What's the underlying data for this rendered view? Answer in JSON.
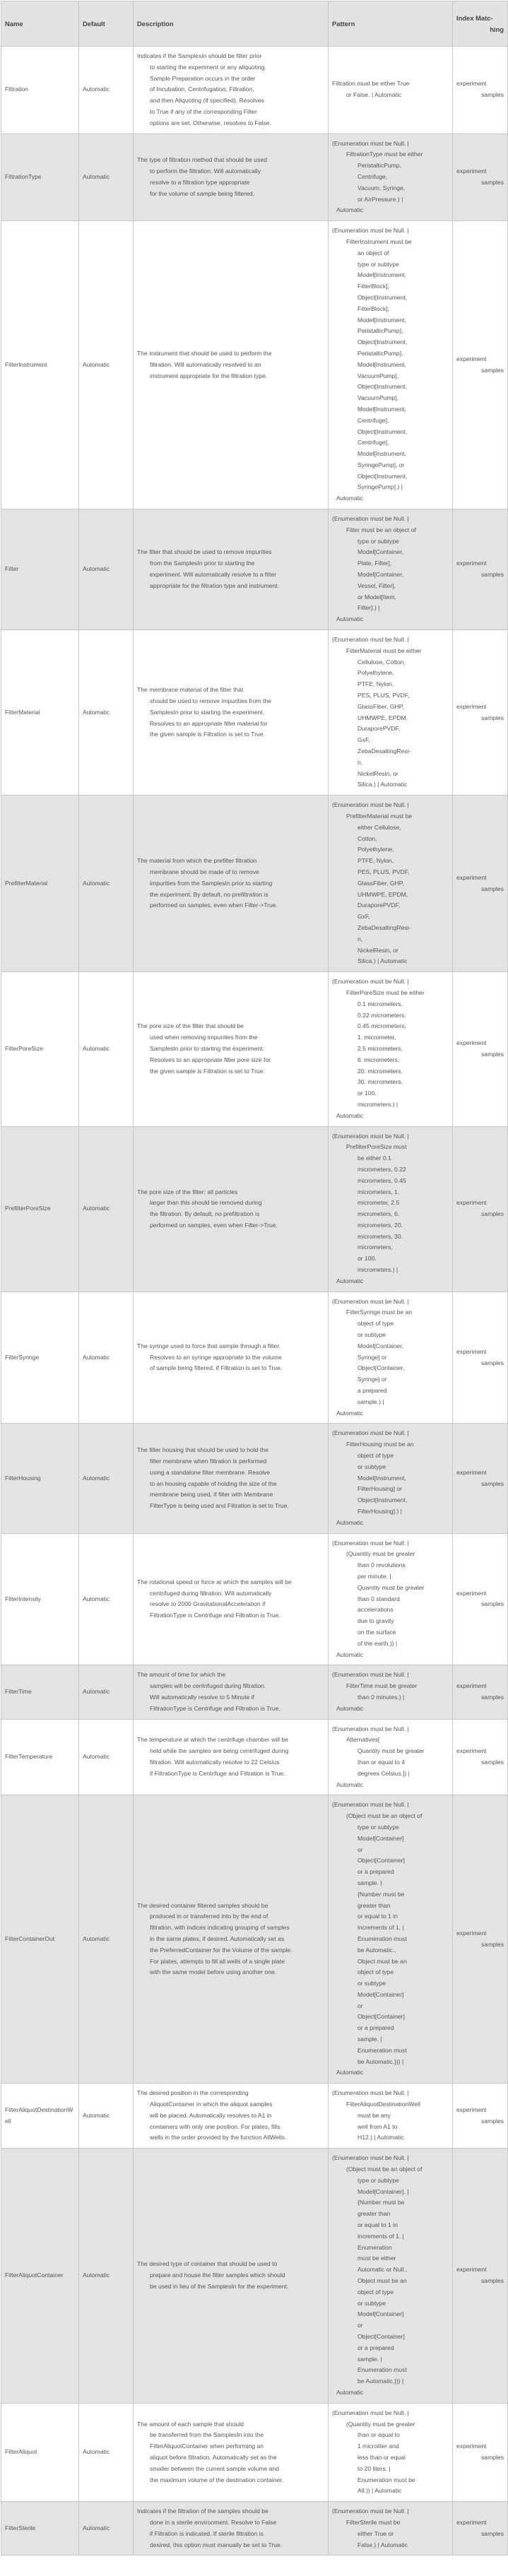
{
  "headers": {
    "name": "Name",
    "default": "Default",
    "description": "Description",
    "pattern": "Pattern",
    "index": "Index Matc- hing"
  },
  "rows": [
    {
      "name": "Filtration",
      "default": "Automatic",
      "description": [
        "Indicates if the SamplesIn should be filter prior",
        "to starting the experiment or any aliquoting.",
        "Sample Preparation occurs in the order",
        "of Incubation, Centrifugation, Filtration,",
        "and then Aliquoting (if specified).  Resolves",
        "to True if any of the corresponding Filter",
        "options are set. Otherwise, resolves to False."
      ],
      "pattern": [
        "Filtration must be either True",
        "or False. | Automatic"
      ],
      "index": "experiment samples"
    },
    {
      "name": "FiltrationType",
      "default": "Automatic",
      "description": [
        "The type of filtration method that should be used",
        "to perform the filtration.  Will automatically",
        "resolve to a filtration type appropriate",
        "for the volume of sample being filtered."
      ],
      "pattern": [
        "(Enumeration must be Null. |",
        "FiltrationType must be either",
        "PeristalticPump,",
        "Centrifuge,",
        "Vacuum, Syringe,",
        "or AirPressure.) |",
        "Automatic"
      ],
      "index": "experiment samples"
    },
    {
      "name": "FilterInstrument",
      "default": "Automatic",
      "description": [
        "The instrument that should be used to perform the",
        "filtration.  Will automatically resolved to an",
        "instrument appropriate for the filtration type."
      ],
      "pattern": [
        "(Enumeration must be Null. |",
        "FilterInstrument must be",
        "an object of",
        "type or subtype",
        "Model[Instrument,",
        "FilterBlock],",
        "Object[Instrument,",
        "FilterBlock],",
        "Model[Instrument,",
        "PeristalticPump],",
        "Object[Instrument,",
        "PeristalticPump],",
        "Model[Instrument,",
        "VacuumPump],",
        "Object[Instrument,",
        "VacuumPump],",
        "Model[Instrument,",
        "Centrifuge],",
        "Object[Instrument,",
        "Centrifuge],",
        "Model[Instrument,",
        "SyringePump], or",
        "Object[Instrument,",
        "SyringePump].) |",
        "Automatic"
      ],
      "index": "experiment samples"
    },
    {
      "name": "Filter",
      "default": "Automatic",
      "description": [
        "The filter that should be used to remove impurities",
        "from the SamplesIn prior to starting the",
        "experiment.  Will automatically resolve to a filter",
        "appropriate for the filtration type and instrument."
      ],
      "pattern": [
        "(Enumeration must be Null. |",
        "Filter must be an object of",
        "type or subtype",
        "Model[Container,",
        "Plate, Filter],",
        "Model[Container,",
        "Vessel, Filter],",
        "or Model[Item,",
        "Filter].) |",
        "Automatic"
      ],
      "index": "experiment samples"
    },
    {
      "name": "FilterMaterial",
      "default": "Automatic",
      "description": [
        "The membrane material of the filter that",
        "should be used to remove impurities from the",
        "SamplesIn prior to starting the experiment.",
        "Resolves to an appropriate filter material for",
        "the given sample is Filtration is set to True."
      ],
      "pattern": [
        "(Enumeration must be Null. |",
        "FilterMaterial must be either",
        "Cellulose, Cotton,",
        "Polyethylene,",
        "PTFE, Nylon,",
        "PES, PLUS, PVDF,",
        "GlassFiber, GHP,",
        "UHMWPE, EPDM,",
        "DuraporePVDF,",
        "GxF,",
        "ZebaDesaltingResi-",
        "n,",
        "NickelResin, or",
        "Silica.) | Automatic"
      ],
      "index": "experiment samples"
    },
    {
      "name": "PrefilterMaterial",
      "default": "Automatic",
      "description": [
        "The material from which the prefilter filtration",
        "membrane should be made of to remove",
        "impurities from the SamplesIn prior to starting",
        "the experiment.  By default, no prefiltration is",
        "performed on samples, even when Filter->True."
      ],
      "pattern": [
        "(Enumeration must be Null. |",
        "PrefilterMaterial must be",
        "either Cellulose,",
        "Cotton,",
        "Polyethylene,",
        "PTFE, Nylon,",
        "PES, PLUS, PVDF,",
        "GlassFiber, GHP,",
        "UHMWPE, EPDM,",
        "DuraporePVDF,",
        "GxF,",
        "ZebaDesaltingResi-",
        "n,",
        "NickelResin, or",
        "Silica.) | Automatic"
      ],
      "index": "experiment samples"
    },
    {
      "name": "FilterPoreSize",
      "default": "Automatic",
      "description": [
        "The pore size of the filter that should be",
        "used when removing impurities from the",
        "SamplesIn prior to starting the experiment.",
        "Resolves to an appropriate filter pore size for",
        "the given sample is Filtration is set to True."
      ],
      "pattern": [
        "(Enumeration must be Null. |",
        "FilterPoreSize must be either",
        "0.1 micrometers,",
        "0.22 micrometers,",
        "0.45 micrometers,",
        "1. micrometer,",
        "2.5 micrometers,",
        "6. micrometers,",
        "20. micrometers,",
        "30. micrometers,",
        "or 100.",
        "micrometers.) |",
        "Automatic"
      ],
      "index": "experiment samples"
    },
    {
      "name": "PrefilterPoreSize",
      "default": "Automatic",
      "description": [
        "The pore size of the filter; all particles",
        "larger than this should be removed during",
        "the filtration.  By default, no prefiltration is",
        "performed on samples, even when Filter->True."
      ],
      "pattern": [
        "(Enumeration must be Null. |",
        "PrefilterPoreSize must",
        "be either 0.1",
        "micrometers, 0.22",
        "micrometers, 0.45",
        "micrometers, 1.",
        "micrometer, 2.5",
        "micrometers, 6.",
        "micrometers, 20.",
        "micrometers, 30.",
        "micrometers,",
        "or 100.",
        "micrometers.) |",
        "Automatic"
      ],
      "index": "experiment samples"
    },
    {
      "name": "FilterSyringe",
      "default": "Automatic",
      "description": [
        "The syringe used to force that sample through a filter.",
        "Resolves to an syringe appropriate to the volume",
        "of sample being filtered, if Filtration is set to True."
      ],
      "pattern": [
        "(Enumeration must be Null. |",
        "FilterSyringe must be an",
        "object of type",
        "or subtype",
        "Model[Container,",
        "Syringe] or",
        "Object[Container,",
        "Syringe] or",
        "a prepared",
        "sample.) |",
        "Automatic"
      ],
      "index": "experiment samples"
    },
    {
      "name": "FilterHousing",
      "default": "Automatic",
      "description": [
        "The filter housing that should be used to hold the",
        "filter membrane when filtration is performed",
        "using a standalone filter membrane.  Resolve",
        "to an housing capable of holding the size of the",
        "membrane being used, if filter with Membrane",
        "FilterType is being used and Filtration is set to True."
      ],
      "pattern": [
        "(Enumeration must be Null. |",
        "FilterHousing must be an",
        "object of type",
        "or subtype",
        "Model[Instrument,",
        "FilterHousing] or",
        "Object[Instrument,",
        "FilterHousing].) |",
        "Automatic"
      ],
      "index": "experiment samples"
    },
    {
      "name": "FilterIntensity",
      "default": "Automatic",
      "description": [
        "The rotational speed or force at which the samples will be",
        "centrifuged during filtration.  Will automatically",
        "resolve to 2000 GravitationalAcceleration if",
        "FiltrationType is Centrifuge and Filtration is True."
      ],
      "pattern": [
        "(Enumeration must be Null. |",
        "(Quantity must be greater",
        "than 0 revolutions",
        "per minute. |",
        "Quantity must be greater",
        "than 0 standard",
        "accelerations",
        "due to gravity",
        "on the surface",
        "of the earth.)) |",
        "Automatic"
      ],
      "index": "experiment samples"
    },
    {
      "name": "FilterTime",
      "default": "Automatic",
      "description": [
        "The amount of time for which the",
        "samples will be centrifuged during filtration.",
        "Will automatically resolve to 5 Minute if",
        "FiltrationType is Centrifuge and Filtration is True."
      ],
      "pattern": [
        "(Enumeration must be Null. |",
        "FilterTime must be greater",
        "than 0 minutes.) |",
        "Automatic"
      ],
      "index": "experiment samples"
    },
    {
      "name": "FilterTemperature",
      "default": "Automatic",
      "description": [
        "The temperature at which the centrifuge chamber will be",
        "held while the samples are being centrifuged during",
        "filtration.  Will automatically resolve to 22 Celsius",
        "if FiltrationType is Centrifuge and Filtration is True."
      ],
      "pattern": [
        "(Enumeration must be Null. |",
        "Alternatives[",
        "Quantity must be greater",
        "than or equal to 4",
        "degrees Celsius.]) |",
        "Automatic"
      ],
      "index": "experiment samples"
    },
    {
      "name": "FilterContainerOut",
      "default": "Automatic",
      "description": [
        "The desired container filtered samples should be",
        "produced in or transferred into by the end of",
        "filtration, with indices indicating grouping of samples",
        "in the same plates, if desired.  Automatically set as",
        "the PreferredContainer for the Volume of the sample.",
        "For plates, attempts to fill all wells of a single plate",
        "with the same model before using another one."
      ],
      "pattern": [
        "(Enumeration must be Null. |",
        "(Object must be an object of",
        "type or subtype",
        "Model[Container]",
        "or",
        "Object[Container]",
        "or a prepared",
        "sample. |",
        "{Number must be",
        "greater than",
        "or equal to 1 in",
        "increments of 1. |",
        "Enumeration must",
        "be Automatic.,",
        "Object must be an",
        "object of type",
        "or subtype",
        "Model[Container]",
        "or",
        "Object[Container]",
        "or a prepared",
        "sample. |",
        "Enumeration must",
        "be Automatic.})) |",
        "Automatic"
      ],
      "index": "experiment samples"
    },
    {
      "name": "FilterAliquotDestinationWell",
      "default": "Automatic",
      "description": [
        "The desired position in the corresponding",
        "AliquotContainer in which the aliquot samples",
        "will be placed.  Automatically resolves to A1 in",
        "containers with only one position.  For plates, fills",
        "wells in the order provided by the function AllWells."
      ],
      "pattern": [
        "(Enumeration must be Null. |",
        "FilterAliquotDestinationWell",
        "must be any",
        "well from A1 to",
        "H12.) | Automatic"
      ],
      "index": "experiment samples"
    },
    {
      "name": "FilterAliquotContainer",
      "default": "Automatic",
      "description": [
        "The desired type of container that should be used to",
        "prepare and house the filter samples which should",
        "be used in lieu of the SamplesIn for the experiment."
      ],
      "pattern": [
        "(Enumeration must be Null. |",
        "(Object must be an object of",
        "type or subtype",
        "Model[Container]. |",
        "{Number must be",
        "greater than",
        "or equal to 1 in",
        "increments of 1. |",
        "Enumeration",
        "must be either",
        "Automatic or Null.,",
        "Object must be an",
        "object of type",
        "or subtype",
        "Model[Container]",
        "or",
        "Object[Container]",
        "or a prepared",
        "sample. |",
        "Enumeration must",
        "be Automatic.})) |",
        "Automatic"
      ],
      "index": "experiment samples"
    },
    {
      "name": "FilterAliquot",
      "default": "Automatic",
      "description": [
        "The amount of each sample that should",
        "be transferred from the SamplesIn into the",
        "FilterAliquotContainer when performing an",
        "aliquot before filtration.  Automatically set as the",
        "smaller between the current sample volume and",
        "the maximum volume of the destination container."
      ],
      "pattern": [
        "(Enumeration must be Null. |",
        "(Quantity must be greater",
        "than or equal to",
        "1 microliter and",
        "less than or equal",
        "to 20 liters. |",
        "Enumeration must be",
        "All.)) | Automatic"
      ],
      "index": "experiment samples"
    },
    {
      "name": "FilterSterile",
      "default": "Automatic",
      "description": [
        "Indicates if the filtration of the samples should be",
        "done in a sterile environment.  Resolve to False",
        "if Filtration is indicated. If sterile filtration is",
        "desired, this option must manually be set to True."
      ],
      "pattern": [
        "(Enumeration must be Null. |",
        "FilterSterile must be",
        "either True or",
        "False.) | Automatic"
      ],
      "index": "experiment samples"
    }
  ]
}
